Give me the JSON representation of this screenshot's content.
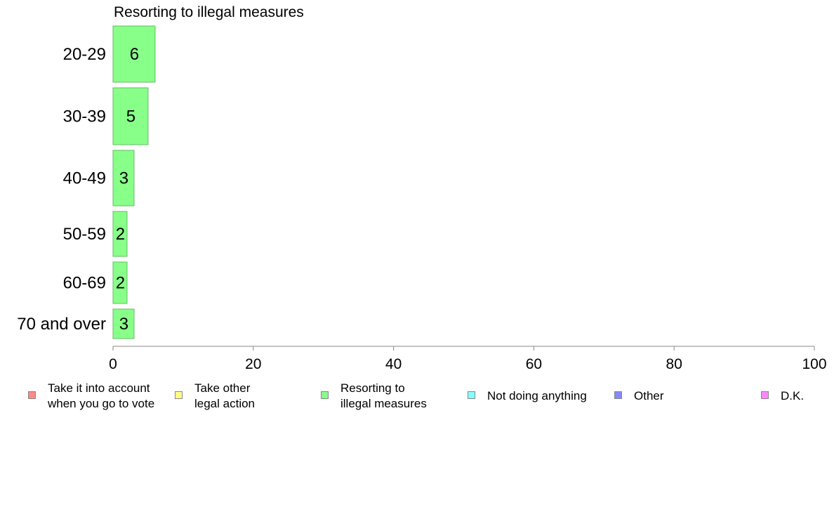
{
  "chart_data": {
    "type": "bar",
    "orientation": "horizontal",
    "title": "Resorting to illegal measures",
    "categories": [
      "20-29",
      "30-39",
      "40-49",
      "50-59",
      "60-69",
      "70 and over"
    ],
    "values": [
      6,
      5,
      3,
      2,
      2,
      3
    ],
    "value_labels": [
      "6",
      "5",
      "3",
      "2",
      "2",
      "3"
    ],
    "bar_color": "#88ff88",
    "bar_border_color": "#66bb66",
    "xlim": [
      0,
      100
    ],
    "xticks": [
      0,
      20,
      40,
      60,
      80,
      100
    ],
    "xtick_labels": [
      "0",
      "20",
      "40",
      "60",
      "80",
      "100"
    ],
    "legend_position": "bottom",
    "legend": [
      {
        "label": "Take it into account\nwhen you go to vote",
        "color": "#ff8888"
      },
      {
        "label": "Take other\nlegal action",
        "color": "#ffff88"
      },
      {
        "label": "Resorting to\nillegal measures",
        "color": "#88ff88"
      },
      {
        "label": "Not doing anything",
        "color": "#88ffff"
      },
      {
        "label": "Other",
        "color": "#8888ff"
      },
      {
        "label": "D.K.",
        "color": "#ff88ff"
      }
    ]
  }
}
